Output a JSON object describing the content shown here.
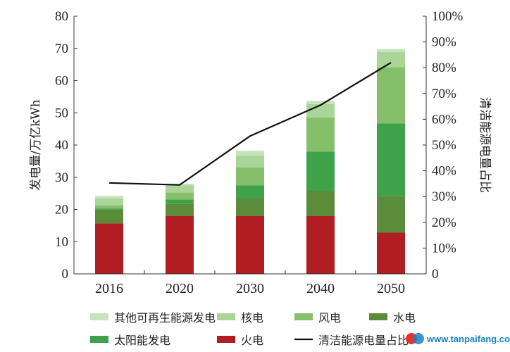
{
  "chart_data": {
    "type": "bar",
    "stacked": true,
    "categories": [
      "2016",
      "2020",
      "2030",
      "2040",
      "2050"
    ],
    "ylabel": "发电量/万亿kWh",
    "y2label": "清洁能源电量占比",
    "ylim": [
      0,
      80
    ],
    "yticks": [
      "0",
      "10",
      "20",
      "30",
      "40",
      "50",
      "60",
      "70",
      "80"
    ],
    "y2lim": [
      0,
      100
    ],
    "y2ticks": [
      "0",
      "10%",
      "20%",
      "30%",
      "40%",
      "50%",
      "60%",
      "70%",
      "80%",
      "90%",
      "100%"
    ],
    "series": [
      {
        "name": "火电",
        "color": "#b01e23",
        "values": [
          15.7,
          18.0,
          18.0,
          18.0,
          12.8
        ]
      },
      {
        "name": "水电",
        "color": "#5a8c3a",
        "values": [
          4.2,
          3.8,
          5.5,
          7.8,
          11.4
        ]
      },
      {
        "name": "太阳能发电",
        "color": "#3fa14a",
        "values": [
          0.4,
          1.3,
          4.0,
          12.2,
          22.5
        ]
      },
      {
        "name": "风电",
        "color": "#86bf69",
        "values": [
          1.0,
          2.2,
          5.5,
          10.5,
          17.5
        ]
      },
      {
        "name": "核电",
        "color": "#a9d598",
        "values": [
          2.1,
          2.2,
          3.7,
          4.2,
          4.7
        ]
      },
      {
        "name": "其他可再生能源发电",
        "color": "#c8e3bc",
        "values": [
          0.8,
          0.5,
          1.5,
          1.0,
          0.9
        ]
      }
    ],
    "line": {
      "name": "清洁能源电量占比",
      "color": "#111111",
      "values": [
        35.3,
        34.5,
        53.5,
        65.5,
        82.0
      ]
    },
    "legend": {
      "placement": "bottom",
      "order": [
        "其他可再生能源发电",
        "核电",
        "风电",
        "水电",
        "太阳能发电",
        "火电",
        "清洁能源电量占比"
      ]
    },
    "grid": false
  },
  "watermark": {
    "text": "www.tanpaifang.com",
    "accent": "#1a7fc4"
  }
}
